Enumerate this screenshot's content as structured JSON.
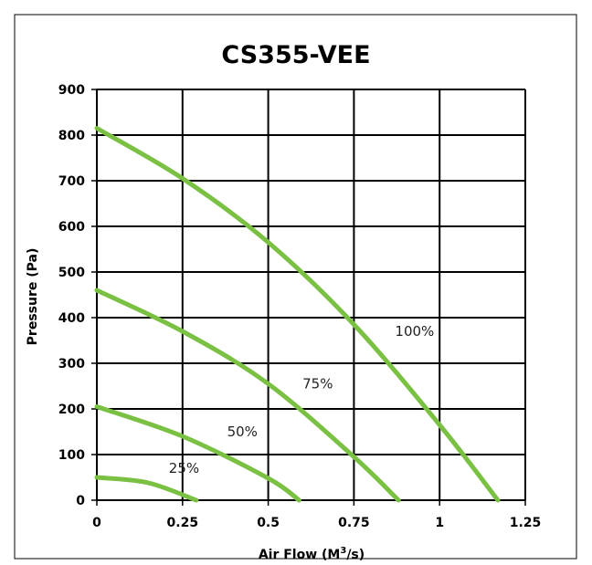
{
  "chart_data": {
    "type": "line",
    "title": "CS355-VEE",
    "xlabel_prefix": "Air Flow (M",
    "xlabel_sup": "3",
    "xlabel_suffix": "/s)",
    "ylabel": "Pressure (Pa)",
    "xlim": [
      0,
      1.25
    ],
    "ylim": [
      0,
      900
    ],
    "x_ticks": [
      0,
      0.25,
      0.5,
      0.75,
      1,
      1.25
    ],
    "x_tick_labels": [
      "0",
      "0.25",
      "0.5",
      "0.75",
      "1",
      "1.25"
    ],
    "y_ticks": [
      0,
      100,
      200,
      300,
      400,
      500,
      600,
      700,
      800,
      900
    ],
    "y_tick_labels": [
      "0",
      "100",
      "200",
      "300",
      "400",
      "500",
      "600",
      "700",
      "800",
      "900"
    ],
    "grid": true,
    "line_color": "#7ac143",
    "series": [
      {
        "name": "100%",
        "points": [
          [
            0,
            815
          ],
          [
            0.25,
            705
          ],
          [
            0.5,
            565
          ],
          [
            0.75,
            385
          ],
          [
            1,
            165
          ],
          [
            1.17,
            0
          ]
        ],
        "label_at": [
          0.87,
          360
        ]
      },
      {
        "name": "75%",
        "points": [
          [
            0,
            460
          ],
          [
            0.25,
            370
          ],
          [
            0.5,
            255
          ],
          [
            0.75,
            95
          ],
          [
            0.88,
            0
          ]
        ],
        "label_at": [
          0.6,
          245
        ]
      },
      {
        "name": "50%",
        "points": [
          [
            0,
            205
          ],
          [
            0.25,
            140
          ],
          [
            0.5,
            48
          ],
          [
            0.59,
            0
          ]
        ],
        "label_at": [
          0.38,
          140
        ]
      },
      {
        "name": "25%",
        "points": [
          [
            0,
            50
          ],
          [
            0.15,
            38
          ],
          [
            0.29,
            0
          ]
        ],
        "label_at": [
          0.21,
          60
        ]
      }
    ]
  }
}
